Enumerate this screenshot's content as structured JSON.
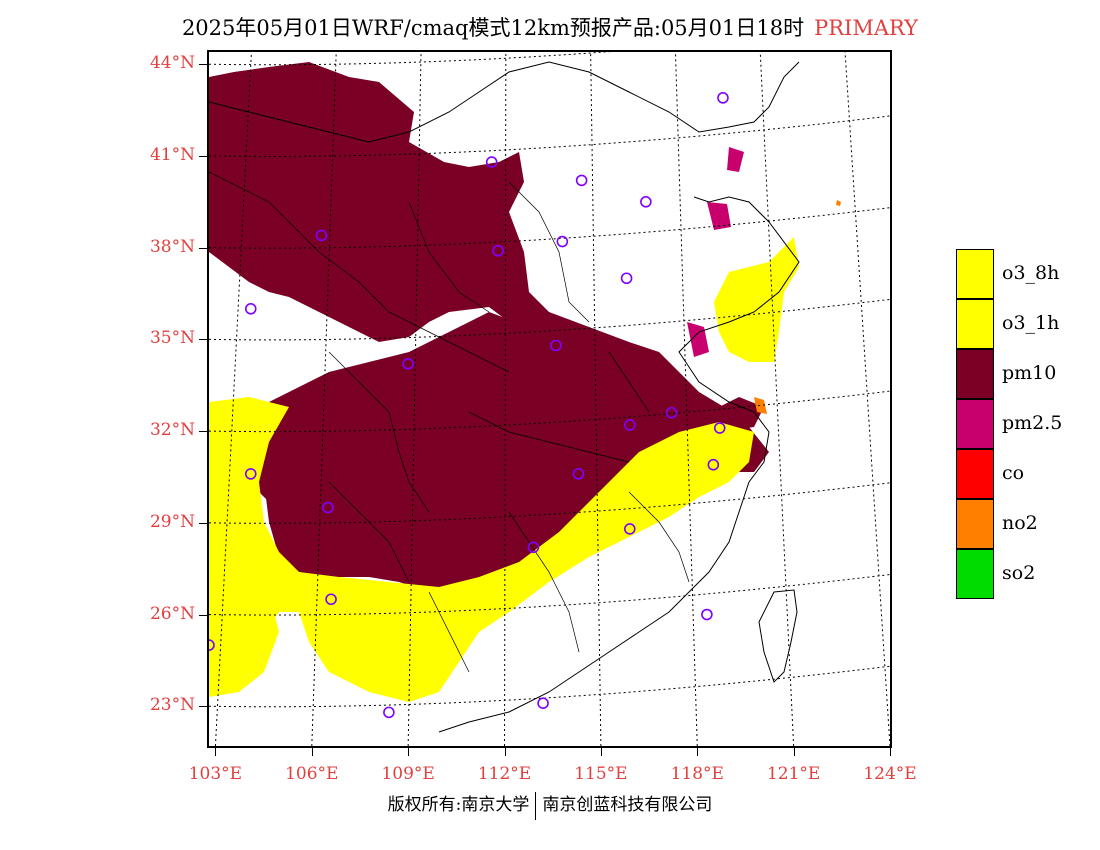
{
  "title": {
    "text": "2025年05月01日WRF/cmaq模式12km预报产品:05月01日18时",
    "tag": "PRIMARY"
  },
  "map": {
    "lat_labels": [
      "44°N",
      "41°N",
      "38°N",
      "35°N",
      "32°N",
      "29°N",
      "26°N",
      "23°N"
    ],
    "lat_values": [
      44,
      41,
      38,
      35,
      32,
      29,
      26,
      23
    ],
    "lon_labels": [
      "103°E",
      "106°E",
      "109°E",
      "112°E",
      "115°E",
      "118°E",
      "121°E",
      "124°E"
    ],
    "lon_values": [
      103,
      106,
      109,
      112,
      115,
      118,
      121,
      124
    ],
    "lon_range": [
      102.8,
      124
    ],
    "lat_range": [
      21.7,
      44.4
    ],
    "colors": {
      "pm10": "#7a0026",
      "o3": "#ffff00",
      "pm2_5": "#c8006e",
      "co": "#ff0000",
      "no2": "#ff7f00",
      "so2": "#00dc00",
      "station": "#8000ff"
    },
    "stations": [
      {
        "lon": 118.8,
        "lat": 42.9
      },
      {
        "lon": 111.6,
        "lat": 40.8
      },
      {
        "lon": 114.4,
        "lat": 40.2
      },
      {
        "lon": 116.4,
        "lat": 39.5
      },
      {
        "lon": 106.3,
        "lat": 38.4
      },
      {
        "lon": 111.8,
        "lat": 37.9
      },
      {
        "lon": 113.8,
        "lat": 38.2
      },
      {
        "lon": 115.8,
        "lat": 37.0
      },
      {
        "lon": 104.1,
        "lat": 36.0
      },
      {
        "lon": 113.6,
        "lat": 34.8
      },
      {
        "lon": 109.0,
        "lat": 34.2
      },
      {
        "lon": 117.2,
        "lat": 32.6
      },
      {
        "lon": 115.9,
        "lat": 32.2
      },
      {
        "lon": 118.7,
        "lat": 32.1
      },
      {
        "lon": 118.5,
        "lat": 30.9
      },
      {
        "lon": 114.3,
        "lat": 30.6
      },
      {
        "lon": 104.1,
        "lat": 30.6
      },
      {
        "lon": 106.5,
        "lat": 29.5
      },
      {
        "lon": 115.9,
        "lat": 28.8
      },
      {
        "lon": 112.9,
        "lat": 28.2
      },
      {
        "lon": 106.6,
        "lat": 26.5
      },
      {
        "lon": 102.8,
        "lat": 25.0
      },
      {
        "lon": 118.3,
        "lat": 26.0
      },
      {
        "lon": 108.4,
        "lat": 22.8
      },
      {
        "lon": 113.2,
        "lat": 23.1
      }
    ]
  },
  "legend": [
    {
      "label": "o3_8h",
      "color": "#ffff00"
    },
    {
      "label": "o3_1h",
      "color": "#ffff00"
    },
    {
      "label": "pm10",
      "color": "#7a0026"
    },
    {
      "label": "pm2.5",
      "color": "#c8006e"
    },
    {
      "label": "co",
      "color": "#ff0000"
    },
    {
      "label": "no2",
      "color": "#ff7f00"
    },
    {
      "label": "so2",
      "color": "#00dc00"
    }
  ],
  "footer": {
    "left": "版权所有:南京大学",
    "right": "南京创蓝科技有限公司"
  }
}
